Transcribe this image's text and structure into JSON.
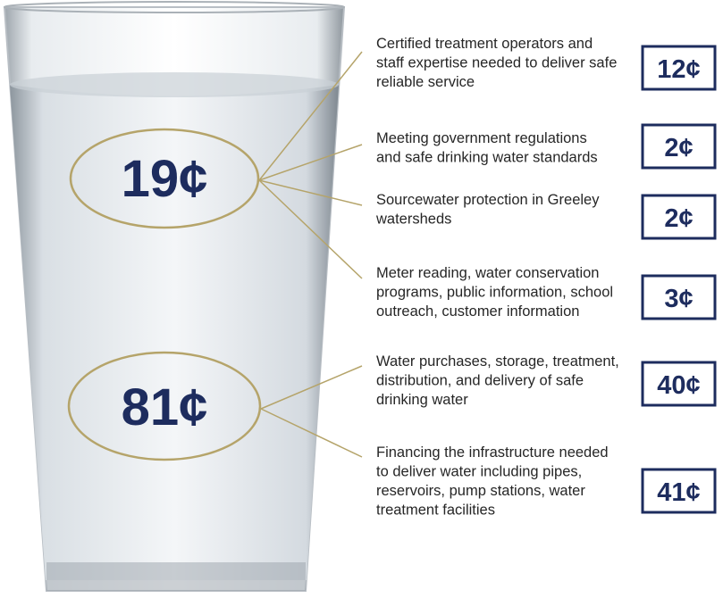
{
  "glass": {
    "top_label": "19¢",
    "bottom_label": "81¢"
  },
  "items": [
    {
      "lines": [
        "Certified treatment operators and",
        "staff expertise needed to deliver safe",
        "reliable service"
      ],
      "amount": "12¢"
    },
    {
      "lines": [
        "Meeting government regulations",
        "and safe drinking water standards"
      ],
      "amount": "2¢"
    },
    {
      "lines": [
        "Sourcewater protection in Greeley",
        "watersheds"
      ],
      "amount": "2¢"
    },
    {
      "lines": [
        "Meter reading, water conservation",
        "programs, public information, school",
        "outreach, customer information"
      ],
      "amount": "3¢"
    },
    {
      "lines": [
        "Water purchases, storage, treatment,",
        "distribution, and delivery of safe",
        "drinking water"
      ],
      "amount": "40¢"
    },
    {
      "lines": [
        "Financing the infrastructure needed",
        "to deliver water including pipes,",
        "reservoirs, pump stations, water",
        "treatment facilities"
      ],
      "amount": "41¢"
    }
  ]
}
